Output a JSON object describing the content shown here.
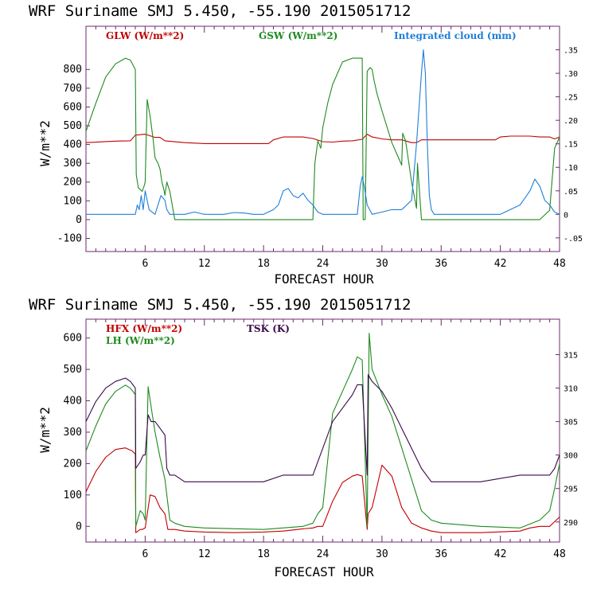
{
  "colors": {
    "red": "#c00000",
    "green": "#1f8a1f",
    "blue": "#1e7fd8",
    "purple": "#3a0a4a",
    "axis": "#6b2a6b"
  },
  "chart_data": [
    {
      "type": "line",
      "title": "WRF   Suriname SMJ   5.450, -55.190  2015051712",
      "xlabel": "FORECAST HOUR",
      "ylabel": "W/m**2",
      "xlim": [
        0,
        48
      ],
      "ylim": [
        -170,
        1030
      ],
      "yticks": [
        -100,
        0,
        100,
        200,
        300,
        400,
        500,
        600,
        700,
        800
      ],
      "ytick_labels": [
        "-100",
        "0",
        "100",
        "200",
        "300",
        "400",
        "500",
        "600",
        "700",
        "800"
      ],
      "xticks": [
        6,
        12,
        18,
        24,
        30,
        36,
        42,
        48
      ],
      "xtick_labels": [
        "6",
        "12",
        "18",
        "24",
        "30",
        "36",
        "42",
        "48"
      ],
      "y2lim": [
        -0.079,
        0.4
      ],
      "y2ticks": [
        -0.05,
        0,
        0.05,
        0.1,
        0.15,
        0.2,
        0.25,
        0.3,
        0.35
      ],
      "y2tick_labels": [
        "-.05",
        "0",
        ".05",
        ".10",
        ".15",
        ".20",
        ".25",
        ".30",
        ".35"
      ],
      "series": [
        {
          "name": "GLW (W/m**2)",
          "color": "red",
          "axis": "left",
          "x": [
            0,
            3,
            4.5,
            5,
            6,
            7,
            7.5,
            8,
            10,
            12,
            15,
            18.5,
            19,
            20,
            21,
            22,
            23,
            24,
            25,
            26,
            27,
            28,
            28.5,
            29,
            30,
            31,
            32,
            33,
            33.5,
            34,
            36,
            40,
            41.5,
            42,
            43,
            44,
            45,
            46,
            47,
            47.5,
            48
          ],
          "y": [
            410,
            418,
            420,
            450,
            455,
            438,
            438,
            420,
            410,
            405,
            405,
            405,
            425,
            440,
            440,
            440,
            432,
            415,
            413,
            418,
            420,
            428,
            455,
            440,
            430,
            425,
            425,
            410,
            410,
            425,
            425,
            425,
            425,
            440,
            445,
            445,
            445,
            440,
            440,
            430,
            440
          ]
        },
        {
          "name": "GSW (W/m**2)",
          "color": "green",
          "axis": "left",
          "x": [
            0,
            1,
            2,
            3,
            4,
            4.5,
            5,
            5.1,
            5.3,
            5.5,
            5.7,
            5.9,
            6,
            6.2,
            6.5,
            6.8,
            7,
            7.3,
            7.5,
            7.7,
            7.9,
            8,
            8.2,
            8.5,
            9,
            10,
            23,
            23.2,
            23.5,
            23.8,
            24,
            24.5,
            25,
            26,
            27,
            28,
            28.1,
            28.3,
            28.5,
            28.8,
            29,
            29.2,
            29.5,
            30,
            31,
            32,
            32.1,
            32.4,
            33,
            33.5,
            33.6,
            34,
            35,
            46,
            47,
            47.5,
            48
          ],
          "y": [
            470,
            620,
            760,
            830,
            860,
            850,
            800,
            240,
            170,
            160,
            150,
            180,
            200,
            640,
            550,
            430,
            330,
            300,
            270,
            200,
            160,
            130,
            200,
            150,
            0,
            0,
            0,
            300,
            420,
            380,
            490,
            620,
            720,
            840,
            860,
            860,
            0,
            0,
            790,
            810,
            800,
            740,
            670,
            580,
            410,
            290,
            460,
            420,
            200,
            60,
            300,
            0,
            0,
            0,
            50,
            380,
            440
          ]
        },
        {
          "name": "Integrated cloud (mm)",
          "color": "blue",
          "axis": "right",
          "x": [
            0,
            5,
            5.2,
            5.4,
            5.6,
            5.8,
            6,
            6.2,
            6.4,
            7,
            7.3,
            7.6,
            8,
            8.2,
            8.5,
            9,
            10,
            11,
            12,
            13,
            14,
            15,
            16,
            17,
            18,
            19,
            19.5,
            20,
            20.5,
            21,
            21.5,
            22,
            22.5,
            23,
            23.5,
            24,
            27.5,
            27.8,
            28,
            28.2,
            28.5,
            29,
            30,
            31,
            32,
            33,
            33.5,
            34,
            34.2,
            34.4,
            34.6,
            34.8,
            35,
            35.3,
            36,
            40,
            41,
            42,
            43,
            44,
            45,
            45.5,
            46,
            46.5,
            47,
            47.5,
            48
          ],
          "y": [
            0,
            0,
            0.02,
            0.01,
            0.04,
            0.01,
            0.05,
            0.03,
            0.01,
            0,
            0.02,
            0.04,
            0.03,
            0.01,
            0,
            0,
            0,
            0.005,
            0,
            0,
            0,
            0.004,
            0.003,
            0,
            0,
            0.01,
            0.02,
            0.05,
            0.055,
            0.04,
            0.035,
            0.045,
            0.03,
            0.02,
            0.005,
            0,
            0,
            0.06,
            0.08,
            0.06,
            0.02,
            0,
            0.005,
            0.01,
            0.01,
            0.03,
            0.15,
            0.3,
            0.35,
            0.3,
            0.15,
            0.04,
            0.01,
            0,
            0,
            0,
            0,
            0,
            0.01,
            0.02,
            0.05,
            0.075,
            0.06,
            0.03,
            0.02,
            0.005,
            0
          ]
        }
      ],
      "legend": [
        "GLW (W/m**2)",
        "GSW (W/m**2)",
        "Integrated cloud (mm)"
      ]
    },
    {
      "type": "line",
      "title": "WRF   Suriname SMJ   5.450, -55.190  2015051712",
      "xlabel": "FORECAST HOUR",
      "ylabel": "W/m**2",
      "xlim": [
        0,
        48
      ],
      "ylim": [
        -50,
        660
      ],
      "yticks": [
        0,
        100,
        200,
        300,
        400,
        500,
        600
      ],
      "ytick_labels": [
        "0",
        "100",
        "200",
        "300",
        "400",
        "500",
        "600"
      ],
      "xticks": [
        6,
        12,
        18,
        24,
        30,
        36,
        42,
        48
      ],
      "xtick_labels": [
        "6",
        "12",
        "18",
        "24",
        "30",
        "36",
        "42",
        "48"
      ],
      "y2lim": [
        287.0,
        320.3
      ],
      "y2ticks": [
        290,
        295,
        300,
        305,
        310,
        315
      ],
      "y2tick_labels": [
        "290",
        "295",
        "300",
        "305",
        "310",
        "315"
      ],
      "series": [
        {
          "name": "HFX (W/m**2)",
          "color": "red",
          "axis": "left",
          "x": [
            0,
            1,
            2,
            3,
            4,
            4.7,
            5,
            5.05,
            5.5,
            5.7,
            6,
            6.5,
            7,
            7.5,
            8,
            8.3,
            9,
            10,
            12,
            15,
            18,
            20,
            22,
            23,
            23.5,
            24,
            25,
            26,
            27,
            27.5,
            28,
            28.5,
            28.6,
            29,
            30,
            31,
            32,
            33,
            34,
            35,
            36,
            40,
            44,
            45,
            46,
            47,
            47.5,
            48
          ],
          "y": [
            110,
            175,
            220,
            245,
            250,
            240,
            230,
            -20,
            -10,
            -10,
            -5,
            100,
            95,
            60,
            40,
            -10,
            -10,
            -15,
            -18,
            -20,
            -18,
            -15,
            -8,
            -5,
            0,
            0,
            80,
            140,
            160,
            165,
            160,
            -10,
            40,
            60,
            195,
            160,
            60,
            10,
            -5,
            -15,
            -20,
            -20,
            -15,
            -5,
            0,
            0,
            15,
            30
          ]
        },
        {
          "name": "LH (W/m**2)",
          "color": "green",
          "axis": "left",
          "x": [
            0,
            1,
            2,
            3,
            4,
            4.5,
            5,
            5.05,
            5.5,
            5.8,
            6,
            6.3,
            6.7,
            7,
            7.5,
            8,
            8.5,
            9,
            10,
            12,
            18,
            22,
            23,
            23.5,
            24,
            25,
            26,
            27,
            27.5,
            28,
            28.5,
            28.7,
            29,
            30,
            31,
            32,
            33,
            34,
            35,
            36,
            40,
            44,
            46,
            47,
            47.5,
            48
          ],
          "y": [
            240,
            320,
            390,
            430,
            450,
            440,
            420,
            0,
            50,
            40,
            20,
            445,
            360,
            300,
            220,
            150,
            20,
            10,
            0,
            -5,
            -10,
            0,
            10,
            40,
            60,
            360,
            430,
            500,
            540,
            530,
            0,
            615,
            500,
            420,
            350,
            250,
            150,
            50,
            20,
            10,
            0,
            -5,
            20,
            50,
            120,
            200
          ]
        },
        {
          "name": "TSK (K)",
          "color": "purple",
          "axis": "right",
          "x": [
            0,
            1,
            2,
            3,
            4,
            4.5,
            5,
            5.05,
            5.5,
            5.8,
            6,
            6.3,
            6.6,
            7,
            7.5,
            8,
            8.2,
            8.5,
            9,
            10,
            12,
            16,
            18,
            20,
            22,
            23,
            23.5,
            24,
            25,
            26,
            27,
            27.5,
            28,
            28.5,
            28.6,
            29,
            30,
            31,
            32,
            33,
            34,
            35,
            36,
            40,
            44,
            46,
            47,
            47.5,
            48
          ],
          "y": [
            305,
            308,
            310,
            311,
            311.5,
            311,
            310,
            298,
            299,
            300,
            300,
            306,
            305,
            305,
            304,
            303,
            298,
            297,
            297,
            296,
            296,
            296,
            296,
            297,
            297,
            297,
            299,
            301,
            305,
            307,
            309,
            310.5,
            310.5,
            297,
            312,
            311,
            309.5,
            307,
            304,
            301,
            298,
            296,
            296,
            296,
            297,
            297,
            297,
            298,
            300
          ]
        }
      ],
      "legend": [
        "HFX (W/m**2)",
        "LH (W/m**2)",
        "TSK (K)"
      ]
    }
  ]
}
